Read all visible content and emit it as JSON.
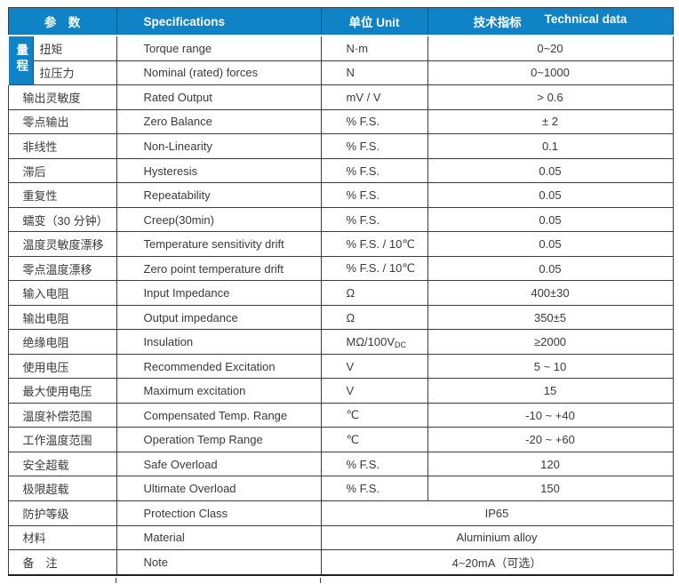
{
  "page": {
    "background": "#ffffff"
  },
  "colors": {
    "header_bg": "#1082c6",
    "header_text": "#ffffff",
    "border": "#3c3c3c",
    "body_text": "#3a3a3a"
  },
  "table": {
    "header": {
      "param_zh": "参　数",
      "spec": "Specifications",
      "unit": "单位 Unit",
      "tech_zh": "技术指标",
      "tech_en": "Technical data"
    },
    "range_group_label": "量程",
    "rows": [
      {
        "param": "扭矩",
        "spec": "Torque range",
        "unit": "N·m",
        "value": "0~20",
        "group_label": "量程",
        "group_span": 2
      },
      {
        "param": "拉压力",
        "spec": "Nominal (rated) forces",
        "unit": "N",
        "value": "0~1000",
        "in_group": true
      },
      {
        "param": "输出灵敏度",
        "spec": "Rated Output",
        "unit": "mV / V",
        "value": "> 0.6"
      },
      {
        "param": "零点输出",
        "spec": "Zero Balance",
        "unit": "% F.S.",
        "value": "± 2"
      },
      {
        "param": "非线性",
        "spec": "Non-Linearity",
        "unit": "% F.S.",
        "value": "0.1"
      },
      {
        "param": "滞后",
        "spec": "Hysteresis",
        "unit": "% F.S.",
        "value": "0.05"
      },
      {
        "param": "重复性",
        "spec": "Repeatability",
        "unit": "% F.S.",
        "value": "0.05"
      },
      {
        "param": "蠕变（30 分钟）",
        "spec": "Creep(30min)",
        "unit": "% F.S.",
        "value": "0.05"
      },
      {
        "param": "温度灵敏度漂移",
        "spec": "Temperature sensitivity drift",
        "unit": "% F.S. / 10℃",
        "value": "0.05"
      },
      {
        "param": "零点温度漂移",
        "spec": "Zero point temperature drift",
        "unit": "% F.S. / 10℃",
        "value": "0.05"
      },
      {
        "param": "输入电阻",
        "spec": "Input Impedance",
        "unit": "Ω",
        "value": "400±30"
      },
      {
        "param": "输出电阻",
        "spec": "Output impedance",
        "unit": "Ω",
        "value": "350±5"
      },
      {
        "param": "绝缘电阻",
        "spec": "Insulation",
        "unit": "MΩ/100V_{DC}",
        "value": "≥2000"
      },
      {
        "param": "使用电压",
        "spec": "Recommended Excitation",
        "unit": "V",
        "value": "5 ~ 10"
      },
      {
        "param": "最大使用电压",
        "spec": "Maximum excitation",
        "unit": "V",
        "value": "15"
      },
      {
        "param": "温度补偿范围",
        "spec": "Compensated Temp. Range",
        "unit": "℃",
        "value": "-10 ~  +40"
      },
      {
        "param": "工作温度范围",
        "spec": "Operation Temp Range",
        "unit": "℃",
        "value": "-20 ~  +60"
      },
      {
        "param": "安全超载",
        "spec": "Safe Overload",
        "unit": "% F.S.",
        "value": "120"
      },
      {
        "param": "极限超载",
        "spec": "Ultimate Overload",
        "unit": "% F.S.",
        "value": "150"
      },
      {
        "param": "防护等级",
        "spec": "Protection Class",
        "merged": true,
        "value": "IP65"
      },
      {
        "param": "材料",
        "spec": "Material",
        "merged": true,
        "value": "Aluminium alloy"
      },
      {
        "param": "备　注",
        "spec": "Note",
        "merged": true,
        "value": "4~20mA（可选）"
      }
    ]
  }
}
